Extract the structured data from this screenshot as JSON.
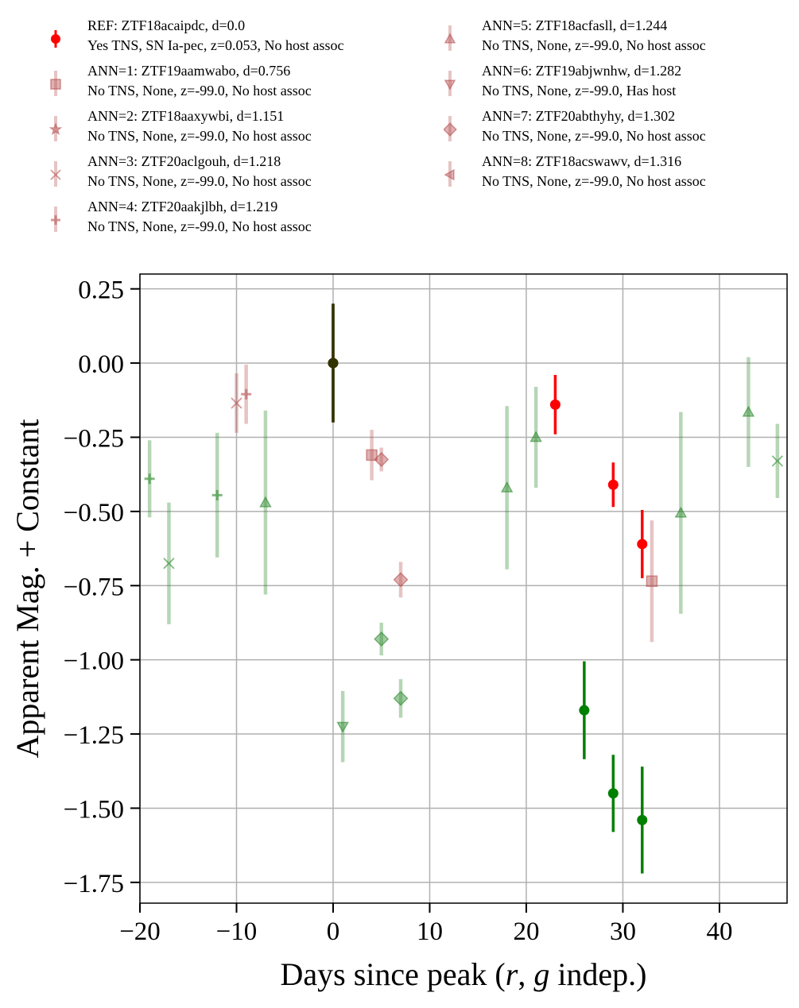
{
  "chart_data": {
    "type": "scatter",
    "xlabel": "Days since peak (r, g indep.)",
    "xlabel_parts": {
      "before": "Days since peak (",
      "r": "r",
      "sep": ", ",
      "g": "g",
      "after": " indep.)"
    },
    "ylabel": "Apparent Mag. + Constant",
    "xlim": [
      -20,
      47
    ],
    "ylim": [
      -1.82,
      0.3
    ],
    "y_inverted": false,
    "grid": true,
    "x_ticks": [
      -20,
      -10,
      0,
      10,
      20,
      30,
      40
    ],
    "x_tick_labels": [
      "−20",
      "−10",
      "0",
      "10",
      "20",
      "30",
      "40"
    ],
    "y_ticks": [
      0.25,
      0.0,
      -0.25,
      -0.5,
      -0.75,
      -1.0,
      -1.25,
      -1.5,
      -1.75
    ],
    "y_tick_labels": [
      "0.25",
      "0.00",
      "−0.25",
      "−0.50",
      "−0.75",
      "−1.00",
      "−1.25",
      "−1.50",
      "−1.75"
    ],
    "legend_position": "top, above plot, two columns",
    "colors": {
      "r_band": "#ff0000",
      "g_band": "#008000",
      "ann_r": "#b85555",
      "ann_g": "#2f8a2f",
      "ref_overlap": "#333300"
    },
    "legend": [
      {
        "id": "ref",
        "marker": "circle",
        "line1": "REF: ZTF18acaipdc, d=0.0",
        "line2": "Yes TNS, SN Ia-pec, z=0.053, No host assoc"
      },
      {
        "id": "ann1",
        "marker": "square",
        "line1": "ANN=1: ZTF19aamwabo, d=0.756",
        "line2": "No TNS, None, z=-99.0, No host assoc"
      },
      {
        "id": "ann2",
        "marker": "star",
        "line1": "ANN=2: ZTF18aaxywbi, d=1.151",
        "line2": "No TNS, None, z=-99.0, No host assoc"
      },
      {
        "id": "ann3",
        "marker": "x",
        "line1": "ANN=3: ZTF20aclgouh, d=1.218",
        "line2": "No TNS, None, z=-99.0, No host assoc"
      },
      {
        "id": "ann4",
        "marker": "plus",
        "line1": "ANN=4: ZTF20aakjlbh, d=1.219",
        "line2": "No TNS, None, z=-99.0, No host assoc"
      },
      {
        "id": "ann5",
        "marker": "triangle-up",
        "line1": "ANN=5: ZTF18acfasll, d=1.244",
        "line2": "No TNS, None, z=-99.0, No host assoc"
      },
      {
        "id": "ann6",
        "marker": "triangle-down",
        "line1": "ANN=6: ZTF19abjwnhw, d=1.282",
        "line2": "No TNS, None, z=-99.0, Has host"
      },
      {
        "id": "ann7",
        "marker": "diamond",
        "line1": "ANN=7: ZTF20abthyhy, d=1.302",
        "line2": "No TNS, None, z=-99.0, No host assoc"
      },
      {
        "id": "ann8",
        "marker": "triangle-left",
        "line1": "ANN=8: ZTF18acswawv, d=1.316",
        "line2": "No TNS, None, z=-99.0, No host assoc"
      }
    ],
    "series": [
      {
        "id": "ref-r",
        "band": "r",
        "marker": "circle",
        "ref": true,
        "points": [
          {
            "x": 0,
            "y": 0.0,
            "err": 0.2
          },
          {
            "x": 23,
            "y": -0.14,
            "err": 0.1
          },
          {
            "x": 29,
            "y": -0.41,
            "err": 0.075
          },
          {
            "x": 32,
            "y": -0.61,
            "err": 0.115
          }
        ]
      },
      {
        "id": "ref-g",
        "band": "g",
        "marker": "circle",
        "ref": true,
        "points": [
          {
            "x": 0,
            "y": 0.0,
            "err": 0.2
          },
          {
            "x": 26,
            "y": -1.17,
            "err": 0.165
          },
          {
            "x": 29,
            "y": -1.45,
            "err": 0.13
          },
          {
            "x": 32,
            "y": -1.54,
            "err": 0.18
          }
        ]
      },
      {
        "id": "ann1-r",
        "band": "r",
        "marker": "square",
        "points": [
          {
            "x": 4,
            "y": -0.31,
            "err": 0.085
          },
          {
            "x": 33,
            "y": -0.735,
            "err": 0.205
          }
        ]
      },
      {
        "id": "ann3-r",
        "band": "r",
        "marker": "x",
        "points": [
          {
            "x": -10,
            "y": -0.135,
            "err": 0.1
          }
        ]
      },
      {
        "id": "ann4-r",
        "band": "r",
        "marker": "plus",
        "points": [
          {
            "x": -9,
            "y": -0.105,
            "err": 0.1
          }
        ]
      },
      {
        "id": "ann7-r",
        "band": "r",
        "marker": "diamond",
        "points": [
          {
            "x": 5,
            "y": -0.325,
            "err": 0.04
          },
          {
            "x": 7,
            "y": -0.73,
            "err": 0.06
          }
        ]
      },
      {
        "id": "ann4-g",
        "band": "g",
        "marker": "plus",
        "points": [
          {
            "x": -19,
            "y": -0.39,
            "err": 0.13
          },
          {
            "x": -12,
            "y": -0.445,
            "err": 0.21
          }
        ]
      },
      {
        "id": "ann3-g",
        "band": "g",
        "marker": "x",
        "points": [
          {
            "x": -17,
            "y": -0.675,
            "err": 0.205
          },
          {
            "x": 46,
            "y": -0.33,
            "err": 0.125
          }
        ]
      },
      {
        "id": "ann5-g",
        "band": "g",
        "marker": "triangle-up",
        "points": [
          {
            "x": -7,
            "y": -0.47,
            "err": 0.31
          },
          {
            "x": 18,
            "y": -0.42,
            "err": 0.275
          },
          {
            "x": 21,
            "y": -0.25,
            "err": 0.17
          },
          {
            "x": 36,
            "y": -0.505,
            "err": 0.34
          },
          {
            "x": 43,
            "y": -0.165,
            "err": 0.185
          }
        ]
      },
      {
        "id": "ann6-g",
        "band": "g",
        "marker": "triangle-down",
        "points": [
          {
            "x": 1,
            "y": -1.225,
            "err": 0.12
          }
        ]
      },
      {
        "id": "ann7-g",
        "band": "g",
        "marker": "diamond",
        "points": [
          {
            "x": 5,
            "y": -0.93,
            "err": 0.055
          },
          {
            "x": 7,
            "y": -1.13,
            "err": 0.065
          }
        ]
      }
    ]
  }
}
